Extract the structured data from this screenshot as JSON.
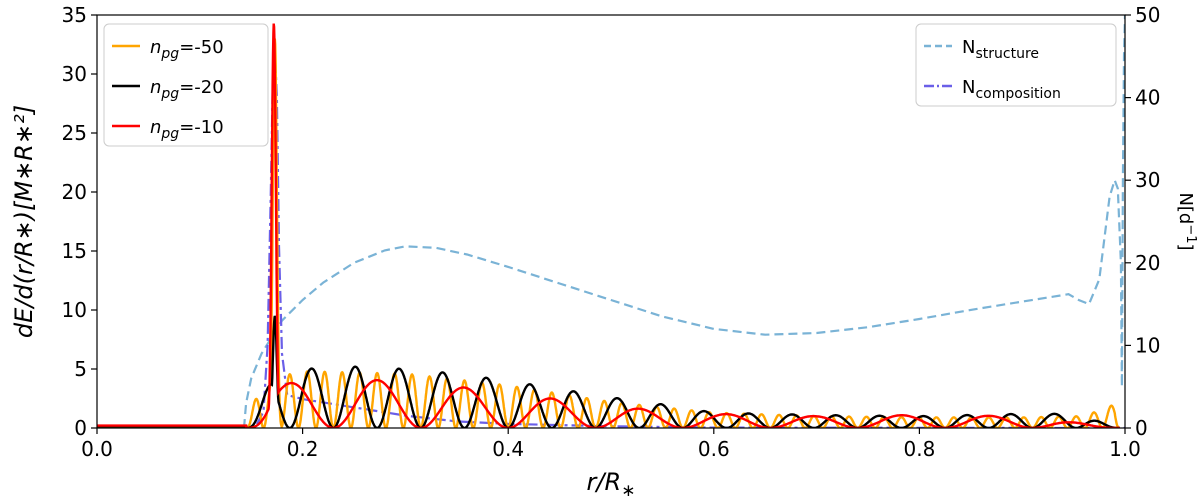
{
  "chart_data": {
    "type": "line",
    "xlabel_parts": [
      "r/R",
      "∗"
    ],
    "ylabel_left": "dE/d(r/R∗)[M∗R∗²]",
    "ylabel_right_parts": [
      "N[d",
      "−1",
      "]"
    ],
    "xlim": [
      0.0,
      1.0
    ],
    "ylim_left": [
      0,
      35
    ],
    "ylim_right": [
      0,
      50
    ],
    "xticks": [
      "0.0",
      "0.2",
      "0.4",
      "0.6",
      "0.8",
      "1.0"
    ],
    "yticks_left": [
      "0",
      "5",
      "10",
      "15",
      "20",
      "25",
      "30",
      "35"
    ],
    "yticks_right": [
      "0",
      "10",
      "20",
      "30",
      "40",
      "50"
    ],
    "legend_left_placement": "top-left",
    "legend_right_placement": "top-right",
    "legend_left": [
      {
        "label_main": "n",
        "label_sub": "pg",
        "label_suffix": "=-50",
        "color": "#ffa500"
      },
      {
        "label_main": "n",
        "label_sub": "pg",
        "label_suffix": "=-20",
        "color": "#000000"
      },
      {
        "label_main": "n",
        "label_sub": "pg",
        "label_suffix": "=-10",
        "color": "#ff0000"
      }
    ],
    "legend_right": [
      {
        "label_main": "N",
        "label_sub": "structure",
        "color": "#7ab3d6",
        "dash": "dashed"
      },
      {
        "label_main": "N",
        "label_sub": "composition",
        "color": "#6a5fe8",
        "dash": "dashdot"
      }
    ],
    "series": [
      {
        "name": "n_pg=-50",
        "color": "#ffa500",
        "axis": "left",
        "start": 0.145,
        "end": 0.995,
        "peak_x": 0.173,
        "peak_y": 33.0,
        "n_osc": 50,
        "env_points": [
          [
            0.145,
            0
          ],
          [
            0.16,
            4
          ],
          [
            0.2,
            4.8
          ],
          [
            0.3,
            4.6
          ],
          [
            0.4,
            3.6
          ],
          [
            0.5,
            2.2
          ],
          [
            0.6,
            1.3
          ],
          [
            0.7,
            1.0
          ],
          [
            0.8,
            0.9
          ],
          [
            0.9,
            0.9
          ],
          [
            0.96,
            1.0
          ],
          [
            0.99,
            2.0
          ],
          [
            0.995,
            0
          ]
        ],
        "baseline": [
          [
            0.0,
            0.1
          ],
          [
            0.145,
            0.1
          ]
        ]
      },
      {
        "name": "n_pg=-20",
        "color": "#000000",
        "axis": "left",
        "start": 0.145,
        "end": 0.995,
        "peak_x": 0.173,
        "peak_y": 9.5,
        "n_osc": 20,
        "env_points": [
          [
            0.145,
            0
          ],
          [
            0.17,
            4
          ],
          [
            0.2,
            5.0
          ],
          [
            0.25,
            5.2
          ],
          [
            0.3,
            5.0
          ],
          [
            0.35,
            4.6
          ],
          [
            0.4,
            4.0
          ],
          [
            0.45,
            3.3
          ],
          [
            0.5,
            2.6
          ],
          [
            0.55,
            2.0
          ],
          [
            0.6,
            1.3
          ],
          [
            0.7,
            1.1
          ],
          [
            0.8,
            1.0
          ],
          [
            0.9,
            1.2
          ],
          [
            0.95,
            1.2
          ],
          [
            0.995,
            0
          ]
        ],
        "baseline": [
          [
            0.0,
            0.15
          ],
          [
            0.145,
            0.15
          ]
        ]
      },
      {
        "name": "n_pg=-10",
        "color": "#ff0000",
        "axis": "left",
        "start": 0.145,
        "end": 0.995,
        "peak_x": 0.172,
        "peak_y": 34.3,
        "n_osc": 10,
        "env_points": [
          [
            0.145,
            0
          ],
          [
            0.17,
            3.5
          ],
          [
            0.2,
            4.0
          ],
          [
            0.25,
            4.1
          ],
          [
            0.3,
            4.0
          ],
          [
            0.35,
            3.5
          ],
          [
            0.4,
            3.0
          ],
          [
            0.45,
            2.4
          ],
          [
            0.5,
            1.8
          ],
          [
            0.6,
            1.2
          ],
          [
            0.7,
            1.0
          ],
          [
            0.8,
            1.1
          ],
          [
            0.9,
            1.0
          ],
          [
            0.995,
            0
          ]
        ],
        "baseline": [
          [
            0.0,
            0.2
          ],
          [
            0.145,
            0.2
          ]
        ]
      },
      {
        "name": "N_structure",
        "color": "#7ab3d6",
        "axis": "right",
        "dash": "dashed",
        "points": [
          [
            0.143,
            0
          ],
          [
            0.145,
            3
          ],
          [
            0.15,
            6
          ],
          [
            0.16,
            9
          ],
          [
            0.17,
            11
          ],
          [
            0.18,
            13
          ],
          [
            0.2,
            15.5
          ],
          [
            0.22,
            17.6
          ],
          [
            0.25,
            20.0
          ],
          [
            0.28,
            21.5
          ],
          [
            0.3,
            22.0
          ],
          [
            0.33,
            21.8
          ],
          [
            0.36,
            21.0
          ],
          [
            0.4,
            19.5
          ],
          [
            0.45,
            17.5
          ],
          [
            0.5,
            15.5
          ],
          [
            0.55,
            13.5
          ],
          [
            0.6,
            12.0
          ],
          [
            0.65,
            11.3
          ],
          [
            0.7,
            11.5
          ],
          [
            0.75,
            12.2
          ],
          [
            0.8,
            13.2
          ],
          [
            0.85,
            14.3
          ],
          [
            0.9,
            15.3
          ],
          [
            0.93,
            15.9
          ],
          [
            0.945,
            16.2
          ],
          [
            0.955,
            15.5
          ],
          [
            0.965,
            15.0
          ],
          [
            0.975,
            18.0
          ],
          [
            0.985,
            28.0
          ],
          [
            0.99,
            30.0
          ],
          [
            0.993,
            29.0
          ],
          [
            0.996,
            20.0
          ],
          [
            0.997,
            5.0
          ],
          [
            0.998,
            30.0
          ],
          [
            0.999,
            45.0
          ],
          [
            1.0,
            50.0
          ]
        ]
      },
      {
        "name": "N_composition",
        "color": "#6a5fe8",
        "axis": "right",
        "dash": "dashdot",
        "points": [
          [
            0.0,
            0
          ],
          [
            0.14,
            0
          ],
          [
            0.155,
            0.3
          ],
          [
            0.162,
            2
          ],
          [
            0.166,
            10
          ],
          [
            0.169,
            28
          ],
          [
            0.171,
            42
          ],
          [
            0.173,
            46
          ],
          [
            0.175,
            40
          ],
          [
            0.177,
            22
          ],
          [
            0.18,
            9
          ],
          [
            0.185,
            4
          ],
          [
            0.2,
            3.5
          ],
          [
            0.25,
            2.5
          ],
          [
            0.3,
            1.5
          ],
          [
            0.35,
            0.8
          ],
          [
            0.4,
            0.5
          ],
          [
            0.5,
            0.2
          ],
          [
            0.6,
            0.05
          ],
          [
            1.0,
            0
          ]
        ]
      }
    ]
  }
}
